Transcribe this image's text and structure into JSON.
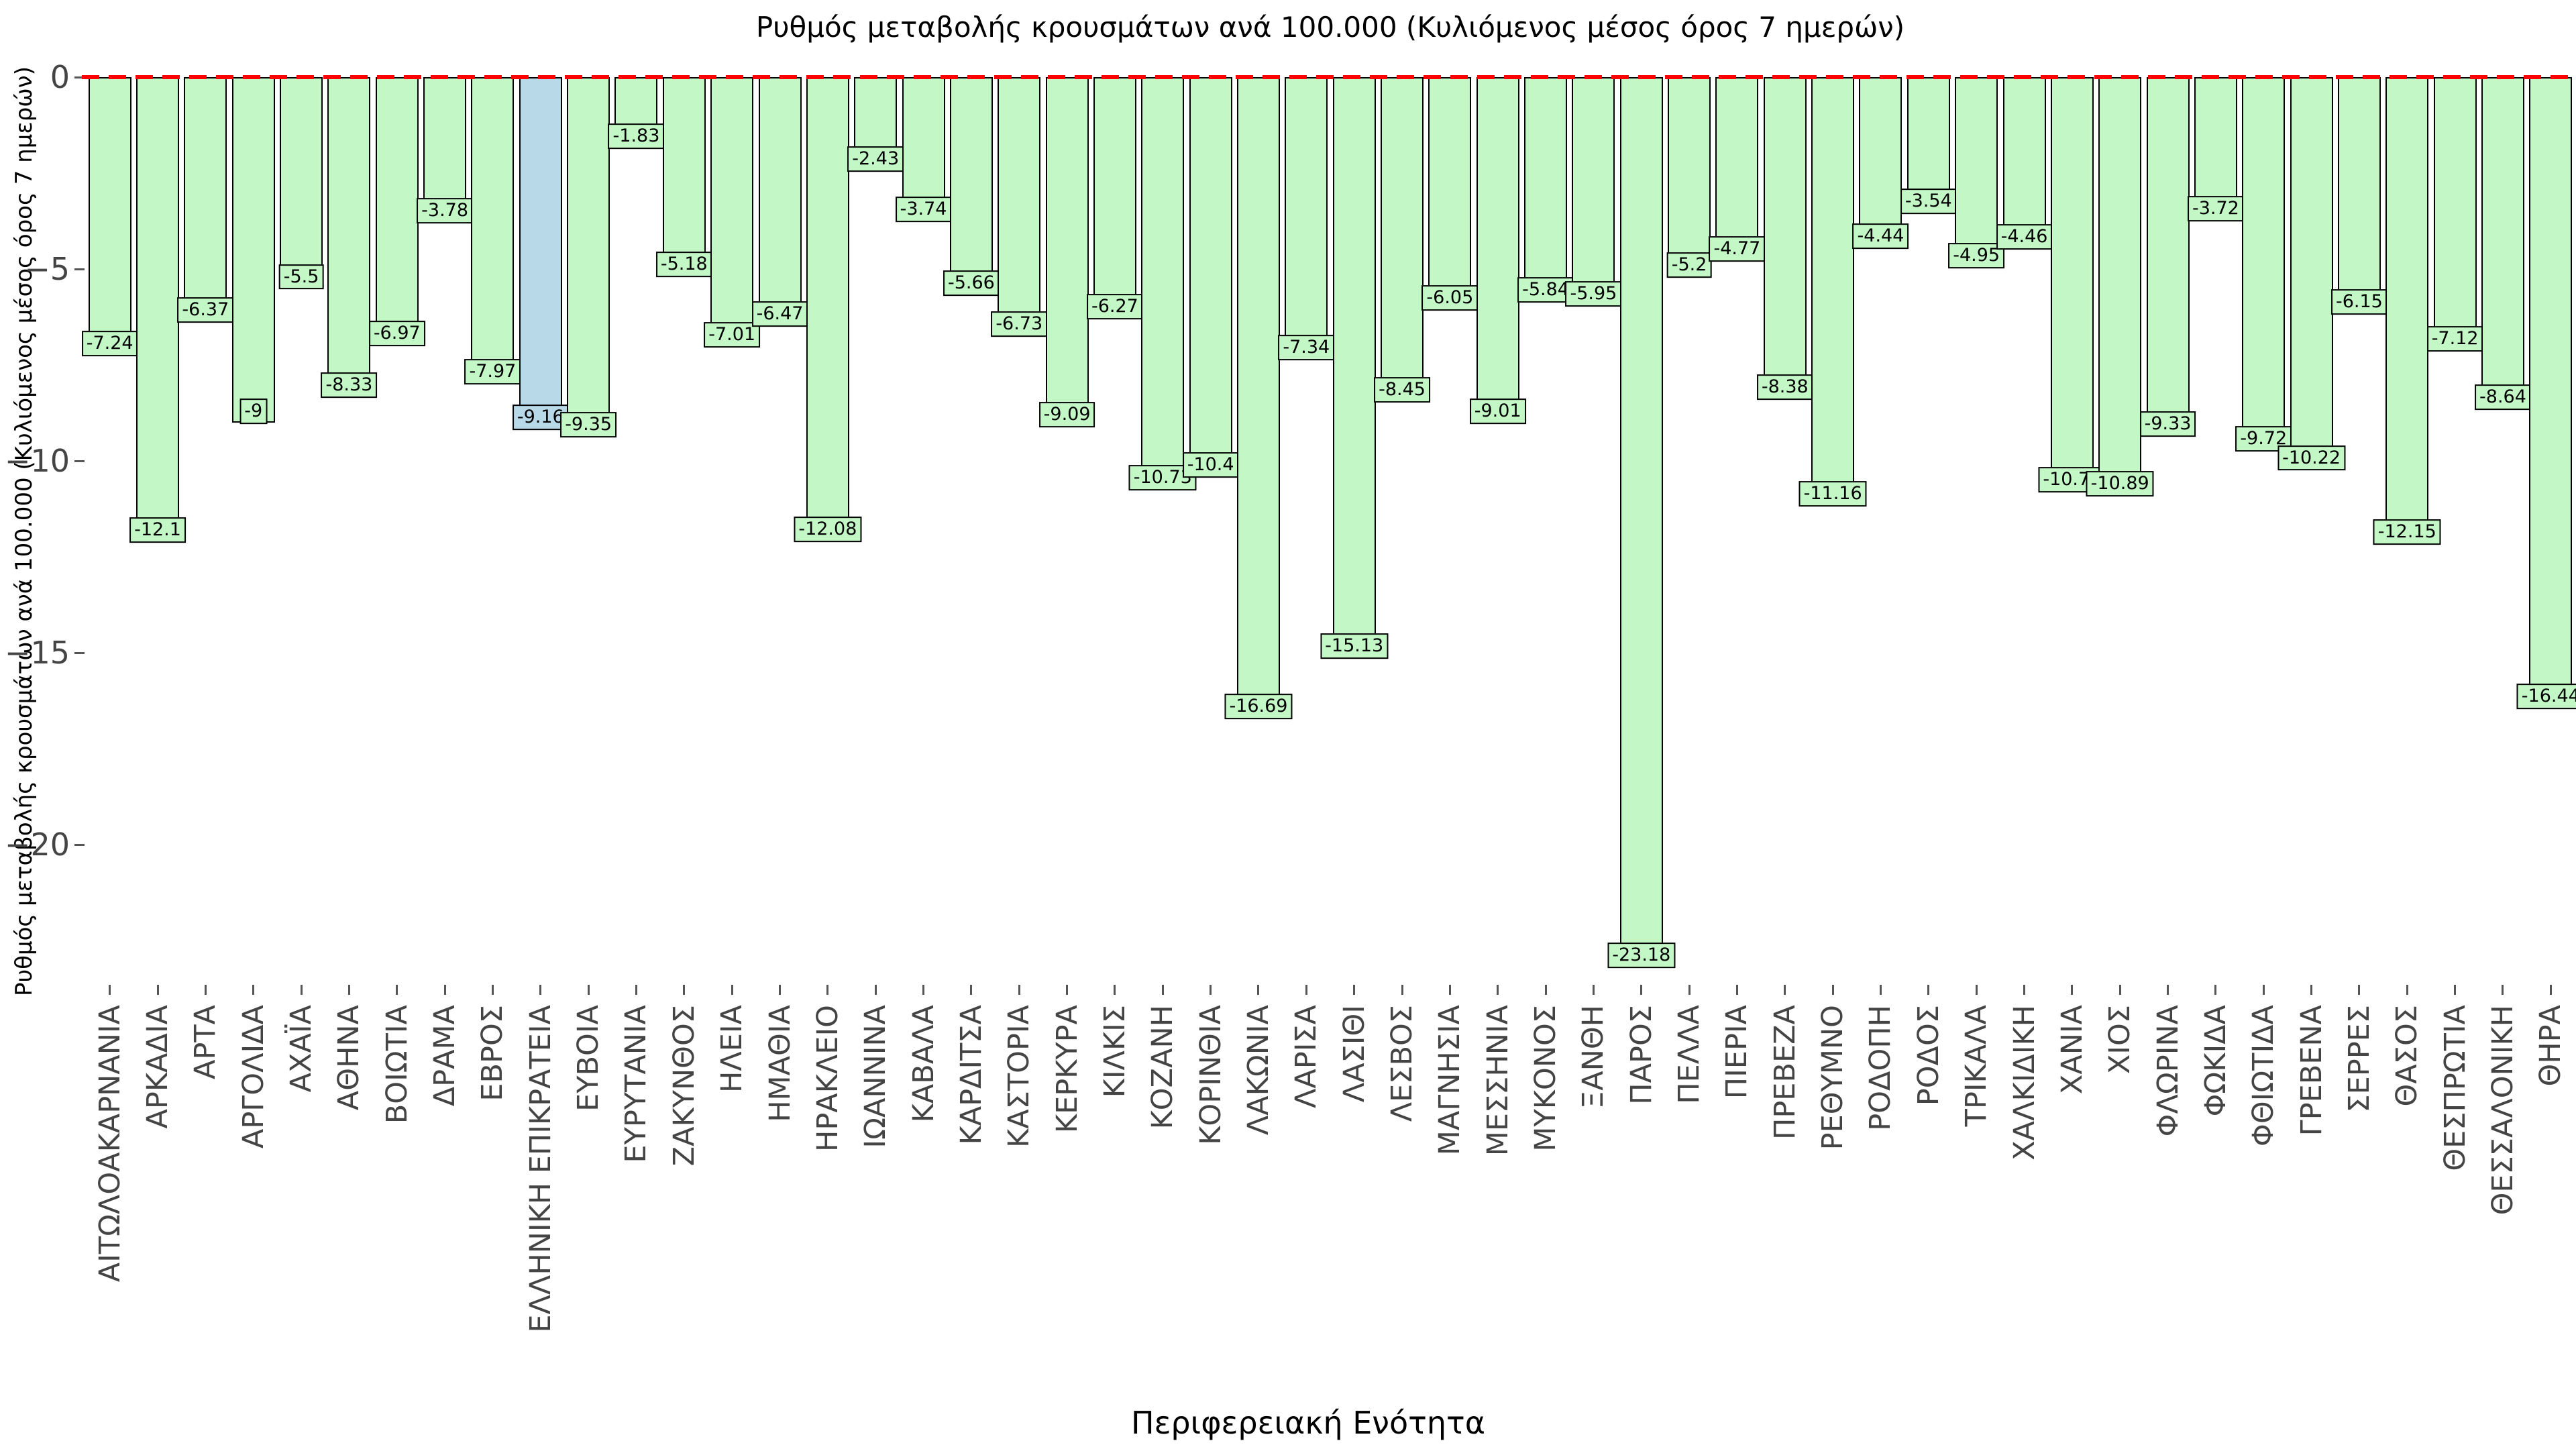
{
  "chart_data": {
    "type": "bar",
    "title": "Ρυθμός μεταβολής κρουσμάτων ανά 100.000 (Κυλιόμενος μέσος όρος 7 ημερών)",
    "xlabel": "Περιφερειακή Ενότητα",
    "ylabel": "Ρυθμός μεταβολής κρουσμάτων ανά 100.000 (Κυλιόμενος μέσος όρος 7 ημερών)",
    "categories": [
      "ΑΙΤΩΛΟΑΚΑΡΝΑΝΙΑ",
      "ΑΡΚΑΔΙΑ",
      "ΑΡΤΑ",
      "ΑΡΓΟΛΙΔΑ",
      "ΑΧΑΪΑ",
      "ΑΘΗΝΑ",
      "ΒΟΙΩΤΙΑ",
      "ΔΡΑΜΑ",
      "ΕΒΡΟΣ",
      "ΕΛΛΗΝΙΚΗ ΕΠΙΚΡΑΤΕΙΑ",
      "ΕΥΒΟΙΑ",
      "ΕΥΡΥΤΑΝΙΑ",
      "ΖΑΚΥΝΘΟΣ",
      "ΗΛΕΙΑ",
      "ΗΜΑΘΙΑ",
      "ΗΡΑΚΛΕΙΟ",
      "ΙΩΑΝΝΙΝΑ",
      "ΚΑΒΑΛΑ",
      "ΚΑΡΔΙΤΣΑ",
      "ΚΑΣΤΟΡΙΑ",
      "ΚΕΡΚΥΡΑ",
      "ΚΙΛΚΙΣ",
      "ΚΟΖΑΝΗ",
      "ΚΟΡΙΝΘΙΑ",
      "ΛΑΚΩΝΙΑ",
      "ΛΑΡΙΣΑ",
      "ΛΑΣΙΘΙ",
      "ΛΕΣΒΟΣ",
      "ΜΑΓΝΗΣΙΑ",
      "ΜΕΣΣΗΝΙΑ",
      "ΜΥΚΟΝΟΣ",
      "ΞΑΝΘΗ",
      "ΠΑΡΟΣ",
      "ΠΕΛΛΑ",
      "ΠΙΕΡΙΑ",
      "ΠΡΕΒΕΖΑ",
      "ΡΕΘΥΜΝΟ",
      "ΡΟΔΟΠΗ",
      "ΡΟΔΟΣ",
      "ΤΡΙΚΑΛΑ",
      "ΧΑΛΚΙΔΙΚΗ",
      "ΧΑΝΙΑ",
      "ΧΙΟΣ",
      "ΦΛΩΡΙΝΑ",
      "ΦΩΚΙΔΑ",
      "ΦΘΙΩΤΙΔΑ",
      "ΓΡΕΒΕΝΑ",
      "ΣΕΡΡΕΣ",
      "ΘΑΣΟΣ",
      "ΘΕΣΠΡΩΤΙΑ",
      "ΘΕΣΣΑΛΟΝΙΚΗ",
      "ΘΗΡΑ"
    ],
    "values": [
      -7.24,
      -12.1,
      -6.37,
      -9,
      -5.5,
      -8.33,
      -6.97,
      -3.78,
      -7.97,
      -9.16,
      -9.35,
      -1.83,
      -5.18,
      -7.01,
      -6.47,
      -12.08,
      -2.43,
      -3.74,
      -5.66,
      -6.73,
      -9.09,
      -6.27,
      -10.73,
      -10.4,
      -16.69,
      -7.34,
      -15.13,
      -8.45,
      -6.05,
      -9.01,
      -5.84,
      -5.95,
      -23.18,
      -5.2,
      -4.77,
      -8.38,
      -11.16,
      -4.44,
      -3.54,
      -4.95,
      -4.46,
      -10.79,
      -10.89,
      -9.33,
      -3.72,
      -9.72,
      -10.22,
      -6.15,
      -12.15,
      -7.12,
      -8.64,
      -16.44
    ],
    "highlight_category": "ΕΛΛΗΝΙΚΗ ΕΠΙΚΡΑΤΕΙΑ",
    "y_ticks": [
      {
        "label": "0",
        "value": 0
      },
      {
        "label": "−5",
        "value": -5
      },
      {
        "label": "−10",
        "value": -10
      },
      {
        "label": "−15",
        "value": -15
      },
      {
        "label": "−20",
        "value": -20
      }
    ],
    "ylim": [
      -23.7,
      0
    ],
    "grid": false,
    "legend": false,
    "zero_line": {
      "value": 0,
      "style": "dashed",
      "color": "#ff0000"
    },
    "colors": {
      "bar_fill": "#c3f8c6",
      "highlight_fill": "#b7d9e8",
      "bar_border": "#000000",
      "zero_line": "#ff0000",
      "tick_text": "#444444",
      "title_text": "#000000",
      "background": "#ffffff"
    }
  }
}
